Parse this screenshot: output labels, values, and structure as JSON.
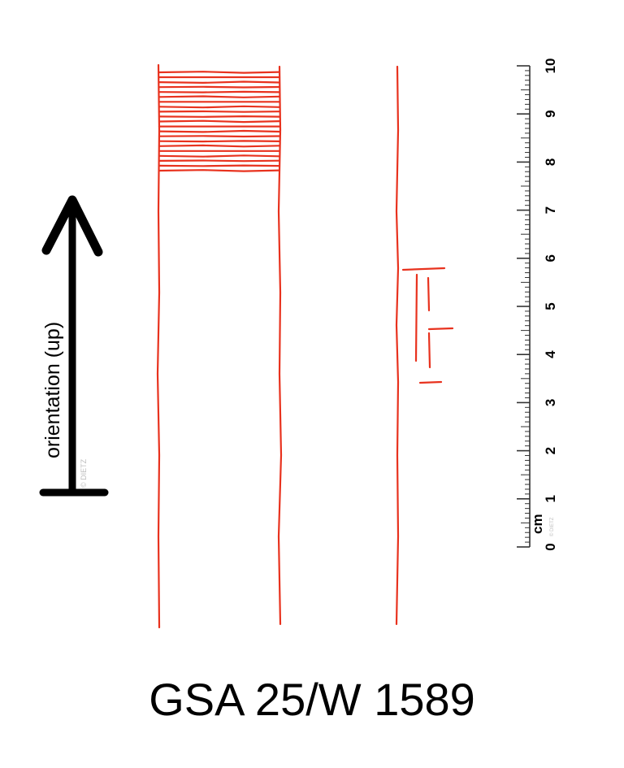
{
  "title": "GSA 25/W 1589",
  "orientation_label": "orientation (up)",
  "copyright_small": "© DIETZ",
  "scale": {
    "unit": "cm",
    "unit_copyright": "© DIETZ",
    "ticks": [
      "0",
      "1",
      "2",
      "3",
      "4",
      "5",
      "6",
      "7",
      "8",
      "9",
      "10"
    ]
  },
  "colors": {
    "drawing": "#e8321e",
    "ink": "#000000",
    "faint": "#bdbdbd"
  }
}
